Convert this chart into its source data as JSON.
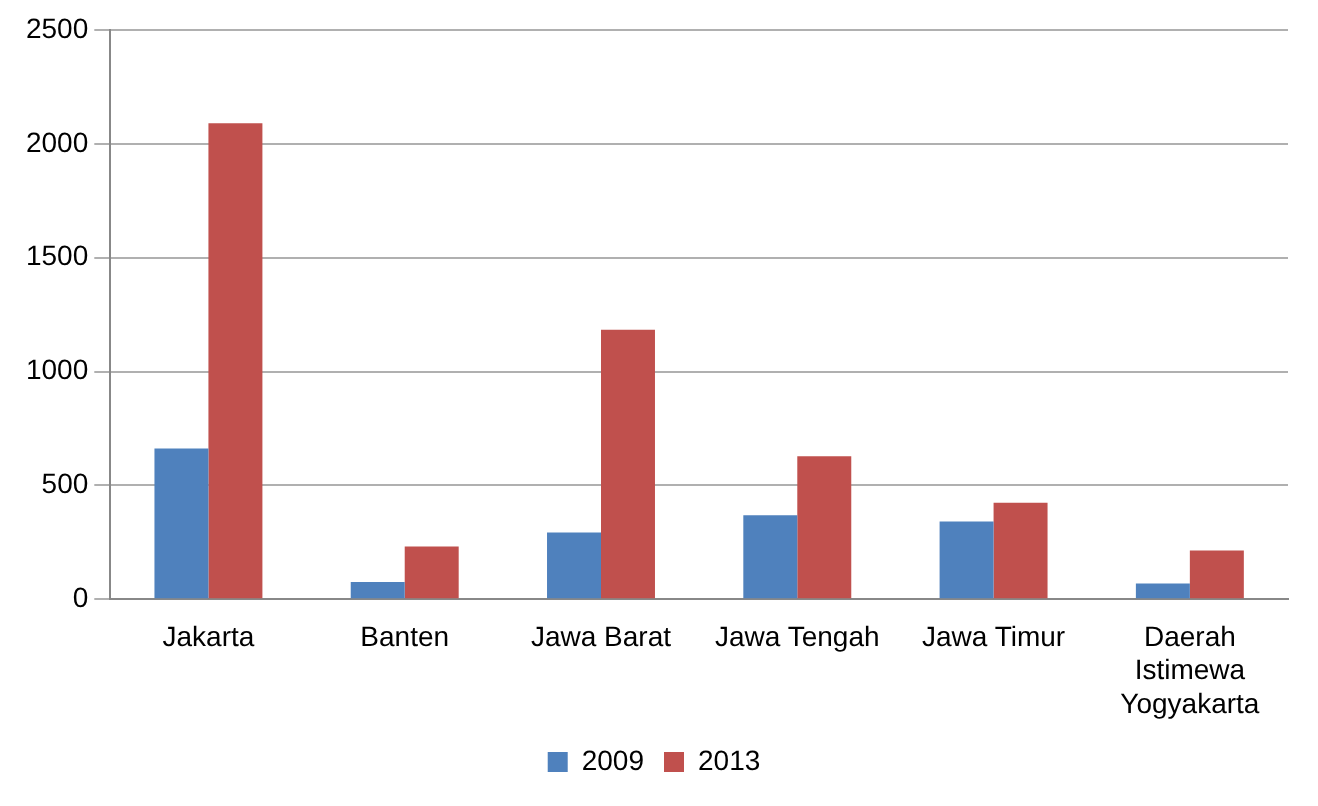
{
  "chart_data": {
    "type": "bar",
    "categories": [
      "Jakarta",
      "Banten",
      "Jawa Barat",
      "Jawa Tengah",
      "Jawa Timur",
      "Daerah Istimewa Yogyakarta"
    ],
    "series": [
      {
        "name": "2009",
        "color": "#4f81bd",
        "values": [
          662,
          76,
          293,
          369,
          341,
          69
        ]
      },
      {
        "name": "2013",
        "color": "#c0504d",
        "values": [
          2090,
          231,
          1183,
          628,
          424,
          214
        ]
      }
    ],
    "ylim": [
      0,
      2500
    ],
    "yticks": [
      0,
      500,
      1000,
      1500,
      2000,
      2500
    ],
    "grid": "y",
    "legend": "bottom"
  }
}
